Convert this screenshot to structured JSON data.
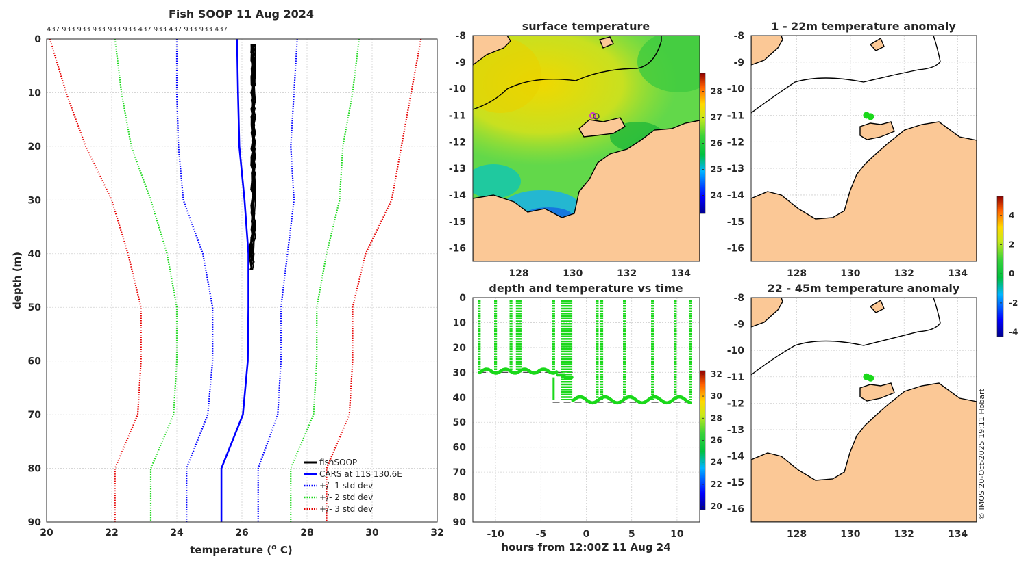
{
  "colors": {
    "black": "#000000",
    "blue": "#0000ff",
    "green": "#1ad81a",
    "red": "#e60000",
    "land": "#fbc896",
    "magenta": "#cc33cc"
  },
  "chart_data": [
    {
      "id": "profile",
      "type": "line",
      "title": "Fish SOOP 11 Aug 2024",
      "subtitle": "437 933 933 933 933 933 437 933 437 933 933 437",
      "xlabel": "temperature (",
      "xlabel_sup": "o",
      "xlabel_end": " C)",
      "ylabel": "depth (m)",
      "xlim": [
        20,
        32
      ],
      "ylim": [
        90,
        0
      ],
      "xticks": [
        "20",
        "22",
        "24",
        "26",
        "28",
        "30",
        "32"
      ],
      "yticks": [
        "0",
        "10",
        "20",
        "30",
        "40",
        "50",
        "60",
        "70",
        "80",
        "90"
      ],
      "legend_position": "bottom-right",
      "legend": [
        "fishSOOP",
        "CARS at 11S 130.6E",
        "+/- 1 std dev",
        "+/- 2 std dev",
        "+/- 3 std dev"
      ],
      "depth": [
        0,
        10,
        20,
        30,
        40,
        50,
        60,
        70,
        80,
        90
      ],
      "cars_mean": [
        25.85,
        25.88,
        25.92,
        26.08,
        26.2,
        26.2,
        26.18,
        26.03,
        25.37,
        25.37
      ],
      "std1_lo": [
        24.0,
        24.0,
        24.05,
        24.2,
        24.8,
        25.1,
        25.1,
        24.95,
        24.3,
        24.3
      ],
      "std1_hi": [
        27.7,
        27.6,
        27.5,
        27.6,
        27.4,
        27.2,
        27.2,
        27.1,
        26.5,
        26.5
      ],
      "std2_lo": [
        22.1,
        22.3,
        22.6,
        23.2,
        23.7,
        24.0,
        24.0,
        23.9,
        23.2,
        23.2
      ],
      "std2_hi": [
        29.6,
        29.4,
        29.1,
        29.0,
        28.6,
        28.3,
        28.3,
        28.2,
        27.5,
        27.5
      ],
      "std3_lo": [
        20.1,
        20.6,
        21.2,
        22.0,
        22.5,
        22.9,
        22.9,
        22.8,
        22.1,
        22.1
      ],
      "std3_hi": [
        31.5,
        31.2,
        30.9,
        30.6,
        29.8,
        29.4,
        29.4,
        29.3,
        28.6,
        28.6
      ],
      "fishsoop_depth_range": [
        1,
        44
      ],
      "fishsoop_temp_range": [
        26.2,
        26.5
      ]
    },
    {
      "id": "surface",
      "type": "heatmap",
      "title": "surface temperature",
      "xlim": [
        126.3,
        134.7
      ],
      "ylim": [
        -16.5,
        -8
      ],
      "xticks": [
        "128",
        "130",
        "132",
        "134"
      ],
      "yticks": [
        "-8",
        "-9",
        "-10",
        "-11",
        "-12",
        "-13",
        "-14",
        "-15",
        "-16"
      ],
      "colorbar_range": [
        23.3,
        28.7
      ],
      "colorbar_ticks": [
        "24",
        "25",
        "26",
        "27",
        "28"
      ]
    },
    {
      "id": "anom_shallow",
      "type": "scatter",
      "title": "1 - 22m temperature anomaly",
      "xlim": [
        126.3,
        134.7
      ],
      "ylim": [
        -16.5,
        -8
      ],
      "xticks": [
        "128",
        "130",
        "132",
        "134"
      ],
      "yticks": [
        "-8",
        "-9",
        "-10",
        "-11",
        "-12",
        "-13",
        "-14",
        "-15",
        "-16"
      ],
      "points": [
        {
          "lon": 130.6,
          "lat": -11.0,
          "anom": 0.4
        },
        {
          "lon": 130.75,
          "lat": -11.05,
          "anom": 0.5
        }
      ],
      "colorbar_range": [
        -4.3,
        5.3
      ],
      "colorbar_ticks": [
        "4",
        "2",
        "0",
        "-2",
        "-4"
      ]
    },
    {
      "id": "anom_deep",
      "type": "scatter",
      "title": "22 - 45m temperature anomaly",
      "xlim": [
        126.3,
        134.7
      ],
      "ylim": [
        -16.5,
        -8
      ],
      "xticks": [
        "128",
        "130",
        "132",
        "134"
      ],
      "yticks": [
        "-8",
        "-9",
        "-10",
        "-11",
        "-12",
        "-13",
        "-14",
        "-15",
        "-16"
      ],
      "points": [
        {
          "lon": 130.6,
          "lat": -11.0,
          "anom": 0.3
        },
        {
          "lon": 130.75,
          "lat": -11.05,
          "anom": 0.4
        }
      ]
    },
    {
      "id": "timeseries",
      "type": "scatter",
      "title": "depth and temperature vs time",
      "xlabel": "hours from 12:00Z 11 Aug 24",
      "xlim": [
        -12.5,
        12.5
      ],
      "ylim": [
        90,
        0
      ],
      "xticks": [
        "-10",
        "-5",
        "0",
        "5",
        "10"
      ],
      "yticks": [
        "0",
        "10",
        "20",
        "30",
        "40",
        "50",
        "60",
        "70",
        "80",
        "90"
      ],
      "casts_hours": [
        -11.8,
        -10,
        -8.3,
        -7.6,
        -7.3,
        -3.6,
        -2.6,
        -2.3,
        -2.0,
        -1.7,
        1.2,
        1.7,
        4.2,
        7.3,
        9.8,
        11.5
      ],
      "bottom_segments": [
        {
          "x0": -11.8,
          "x1": -1.5,
          "depth": 30
        },
        {
          "x0": -3.7,
          "x1": 11.5,
          "depth": 42
        }
      ],
      "colorbar_range": [
        19.7,
        32.3
      ],
      "colorbar_ticks": [
        "32",
        "30",
        "28",
        "26",
        "24",
        "22",
        "20"
      ]
    }
  ],
  "credit": "© IMOS 20-Oct-2025 19:11 Hobart"
}
